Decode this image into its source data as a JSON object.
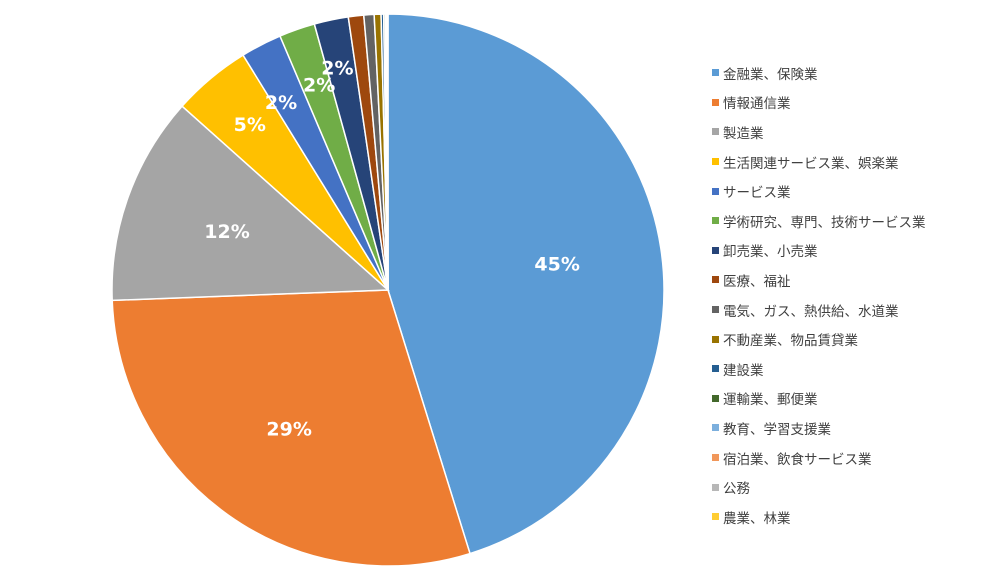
{
  "chart_data": {
    "type": "pie",
    "title": "",
    "start_angle_deg": 0,
    "direction": "clockwise",
    "legend_position": "right",
    "slices": [
      {
        "name": "金融業、保険業",
        "value": 45.2,
        "label": "45%",
        "color": "#5b9bd5"
      },
      {
        "name": "情報通信業",
        "value": 29.2,
        "label": "29%",
        "color": "#ed7d31"
      },
      {
        "name": "製造業",
        "value": 12.2,
        "label": "12%",
        "color": "#a5a5a5"
      },
      {
        "name": "生活関連サービス業、娯楽業",
        "value": 4.6,
        "label": "5%",
        "color": "#ffc000"
      },
      {
        "name": "サービス業",
        "value": 2.4,
        "label": "2%",
        "color": "#4472c4"
      },
      {
        "name": "学術研究、専門、技術サービス業",
        "value": 2.1,
        "label": "2%",
        "color": "#70ad47"
      },
      {
        "name": "卸売業、小売業",
        "value": 2.0,
        "label": "2%",
        "color": "#264478"
      },
      {
        "name": "医療、福祉",
        "value": 0.9,
        "label": "",
        "color": "#9e480e"
      },
      {
        "name": "電気、ガス、熱供給、水道業",
        "value": 0.6,
        "label": "",
        "color": "#636363"
      },
      {
        "name": "不動産業、物品賃貸業",
        "value": 0.4,
        "label": "",
        "color": "#997300"
      },
      {
        "name": "建設業",
        "value": 0.15,
        "label": "",
        "color": "#255e91"
      },
      {
        "name": "運輸業、郵便業",
        "value": 0.1,
        "label": "",
        "color": "#43682b"
      },
      {
        "name": "教育、学習支援業",
        "value": 0.05,
        "label": "",
        "color": "#7cafdd"
      },
      {
        "name": "宿泊業、飲食サービス業",
        "value": 0.05,
        "label": "",
        "color": "#f1975a"
      },
      {
        "name": "公務",
        "value": 0.03,
        "label": "",
        "color": "#b7b7b7"
      },
      {
        "name": "農業、林業",
        "value": 0.02,
        "label": "",
        "color": "#ffcd33"
      }
    ]
  }
}
